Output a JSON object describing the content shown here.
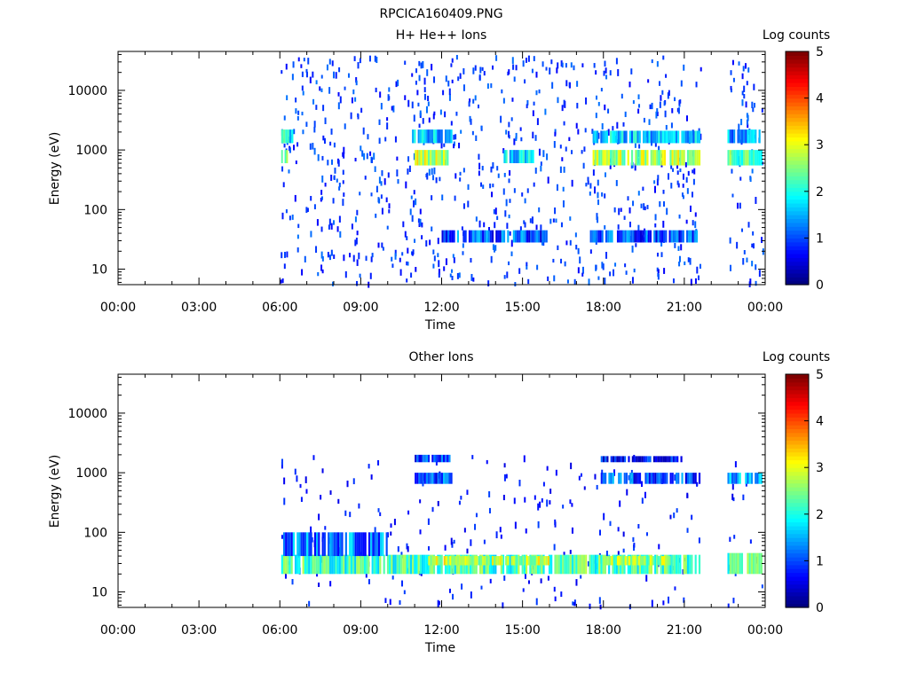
{
  "figure": {
    "title": "RPCICA160409.PNG"
  },
  "colors": {
    "axis": "#000000",
    "background": "#ffffff"
  },
  "chart_data": [
    {
      "type": "heatmap",
      "title": "H+ He++ Ions",
      "xlabel": "Time",
      "ylabel": "Energy (eV)",
      "colorbar_label": "Log counts",
      "x_ticks": [
        "00:00",
        "03:00",
        "06:00",
        "09:00",
        "12:00",
        "15:00",
        "18:00",
        "21:00",
        "00:00"
      ],
      "xlim_hours": [
        0,
        24
      ],
      "y_ticks": [
        "10",
        "100",
        "1000",
        "10000"
      ],
      "y_scale": "log",
      "ylim": [
        5.5,
        45000
      ],
      "colorbar_ticks": [
        "0",
        "1",
        "2",
        "3",
        "4",
        "5"
      ],
      "clim": [
        0,
        5
      ],
      "grid": false,
      "data_gaps_hours": [
        [
          0,
          6.0
        ],
        [
          21.6,
          22.6
        ]
      ],
      "bands": [
        {
          "t0": 6.05,
          "t1": 6.5,
          "e0": 1300,
          "e1": 2200,
          "level": 1.8
        },
        {
          "t0": 6.05,
          "t1": 6.3,
          "e0": 600,
          "e1": 1000,
          "level": 2.6
        },
        {
          "t0": 10.9,
          "t1": 12.4,
          "e0": 1300,
          "e1": 2200,
          "level": 1.6
        },
        {
          "t0": 11.0,
          "t1": 12.4,
          "e0": 550,
          "e1": 1000,
          "level": 2.8
        },
        {
          "t0": 17.6,
          "t1": 21.6,
          "e0": 1300,
          "e1": 2100,
          "level": 1.6
        },
        {
          "t0": 17.6,
          "t1": 21.6,
          "e0": 550,
          "e1": 1000,
          "level": 2.7
        },
        {
          "t0": 22.6,
          "t1": 23.9,
          "e0": 1300,
          "e1": 2200,
          "level": 1.5
        },
        {
          "t0": 22.6,
          "t1": 23.9,
          "e0": 550,
          "e1": 1000,
          "level": 2.4
        },
        {
          "t0": 14.3,
          "t1": 15.5,
          "e0": 600,
          "e1": 1000,
          "level": 1.7
        },
        {
          "t0": 12.0,
          "t1": 16.0,
          "e0": 28,
          "e1": 45,
          "level": 1.0
        },
        {
          "t0": 17.5,
          "t1": 21.5,
          "e0": 28,
          "e1": 45,
          "level": 1.0
        }
      ],
      "scatter": {
        "t0": 6.0,
        "t1": 23.9,
        "e0": 6,
        "e1": 40000,
        "level": 1.0
      }
    },
    {
      "type": "heatmap",
      "title": "Other Ions",
      "xlabel": "Time",
      "ylabel": "Energy (eV)",
      "colorbar_label": "Log counts",
      "x_ticks": [
        "00:00",
        "03:00",
        "06:00",
        "09:00",
        "12:00",
        "15:00",
        "18:00",
        "21:00",
        "00:00"
      ],
      "xlim_hours": [
        0,
        24
      ],
      "y_ticks": [
        "10",
        "100",
        "1000",
        "10000"
      ],
      "y_scale": "log",
      "ylim": [
        5.5,
        45000
      ],
      "colorbar_ticks": [
        "0",
        "1",
        "2",
        "3",
        "4",
        "5"
      ],
      "clim": [
        0,
        5
      ],
      "grid": false,
      "data_gaps_hours": [
        [
          0,
          6.0
        ],
        [
          21.6,
          22.6
        ]
      ],
      "bands": [
        {
          "t0": 6.05,
          "t1": 21.6,
          "e0": 20,
          "e1": 42,
          "level": 2.2
        },
        {
          "t0": 6.05,
          "t1": 10.0,
          "e0": 40,
          "e1": 100,
          "level": 1.2
        },
        {
          "t0": 11.5,
          "t1": 16.0,
          "e0": 28,
          "e1": 40,
          "level": 2.8
        },
        {
          "t0": 18.0,
          "t1": 20.5,
          "e0": 28,
          "e1": 40,
          "level": 2.6
        },
        {
          "t0": 22.6,
          "t1": 23.9,
          "e0": 20,
          "e1": 45,
          "level": 2.3
        },
        {
          "t0": 11.0,
          "t1": 12.4,
          "e0": 650,
          "e1": 1000,
          "level": 1.0
        },
        {
          "t0": 11.0,
          "t1": 12.4,
          "e0": 1500,
          "e1": 2000,
          "level": 0.9
        },
        {
          "t0": 17.9,
          "t1": 21.6,
          "e0": 650,
          "e1": 1000,
          "level": 1.0
        },
        {
          "t0": 17.9,
          "t1": 21.0,
          "e0": 1500,
          "e1": 1900,
          "level": 0.6
        },
        {
          "t0": 22.6,
          "t1": 23.9,
          "e0": 650,
          "e1": 1000,
          "level": 1.5
        }
      ],
      "scatter": {
        "t0": 6.0,
        "t1": 23.9,
        "e0": 6,
        "e1": 2000,
        "level": 0.8
      }
    }
  ]
}
